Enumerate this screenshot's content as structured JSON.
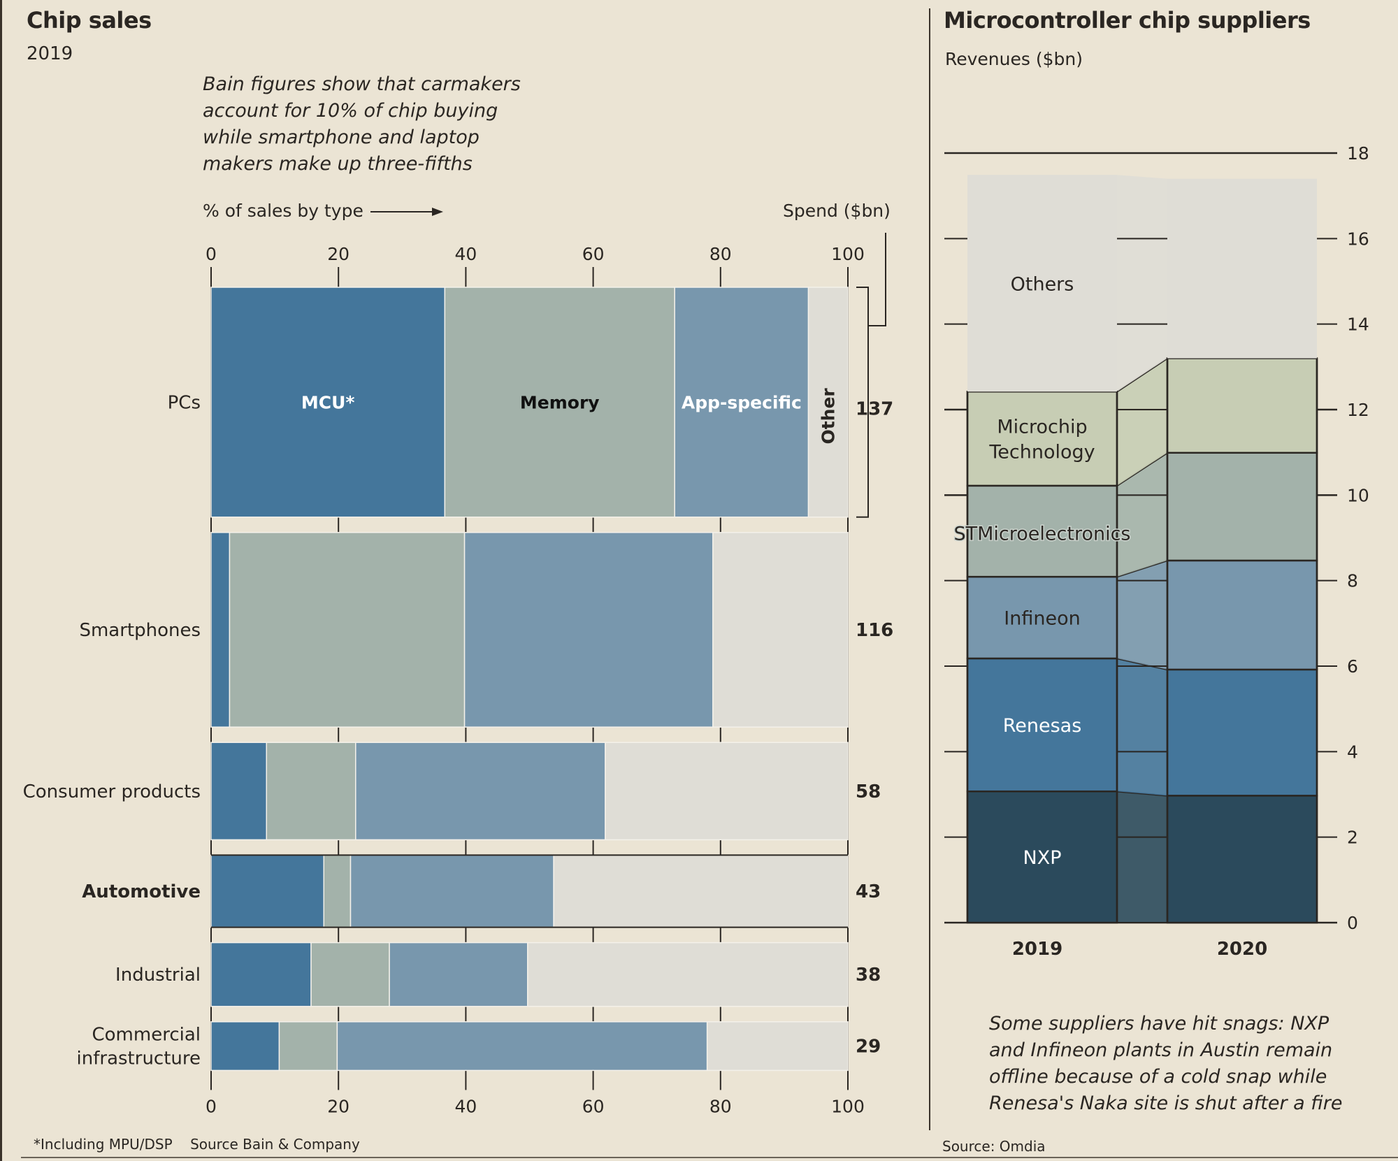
{
  "left": {
    "title": "Chip sales",
    "subtitle": "2019",
    "annotation_lines": [
      "Bain figures show that carmakers",
      "account for 10% of chip buying",
      "while smartphone and laptop",
      "makers make up three-fifths"
    ],
    "x_axis_caption": "% of sales by type",
    "spend_caption": "Spend ($bn)",
    "footnote": "*Including MPU/DSP",
    "source": "Source Bain & Company"
  },
  "right": {
    "title": "Microcontroller chip suppliers",
    "subtitle": "Revenues ($bn)",
    "annotation_lines": [
      "Some suppliers have hit snags: NXP",
      "and Infineon plants in Austin remain",
      "offline because of a cold snap while",
      "Renesa's Naka site is shut after a fire"
    ],
    "source": "Source: Omdia"
  },
  "colors": {
    "background": "#ebe4d4",
    "mcu": "#44769b",
    "memory": "#a3b2aa",
    "app_specific": "#7897ad",
    "other": "#dfddd6",
    "nxp": "#2b4a5c",
    "renesas": "#44769b",
    "infineon": "#7897ad",
    "stmicro": "#a3b2aa",
    "microchip": "#c7cdb4",
    "others": "#dfddd6",
    "ink": "#2a2622"
  },
  "chart_data": [
    {
      "type": "bar",
      "subtype": "marimekko-stacked-100",
      "title": "Chip sales",
      "subtitle": "2019",
      "xlabel": "% of sales by type",
      "xlim": [
        0,
        100
      ],
      "xticks": [
        0,
        20,
        40,
        60,
        80,
        100
      ],
      "grid": false,
      "bar_thickness_encodes": "Spend ($bn)",
      "categories": [
        "PCs",
        "Smartphones",
        "Consumer products",
        "Automotive",
        "Industrial",
        "Commercial infrastructure"
      ],
      "category_label_lines": [
        [
          "PCs"
        ],
        [
          "Smartphones"
        ],
        [
          "Consumer products"
        ],
        [
          "Automotive"
        ],
        [
          "Industrial"
        ],
        [
          "Commercial",
          "infrastructure"
        ]
      ],
      "highlight_category": "Automotive",
      "spend_bn": [
        137,
        116,
        58,
        43,
        38,
        29
      ],
      "series": [
        {
          "name": "MCU*",
          "color_key": "mcu",
          "label_color": "#ffffff",
          "values": [
            36.7,
            2.9,
            8.7,
            17.7,
            15.7,
            10.7
          ]
        },
        {
          "name": "Memory",
          "color_key": "memory",
          "label_color": "#111111",
          "values": [
            36.1,
            36.9,
            14.0,
            4.2,
            12.3,
            9.1
          ]
        },
        {
          "name": "App-specific",
          "color_key": "app_specific",
          "label_color": "#ffffff",
          "values": [
            21.0,
            39.0,
            39.2,
            31.9,
            21.7,
            58.1
          ]
        },
        {
          "name": "Other",
          "color_key": "other",
          "label_color": "#2a2622",
          "values": [
            6.2,
            21.2,
            38.1,
            46.2,
            50.3,
            22.1
          ]
        }
      ]
    },
    {
      "type": "bar",
      "subtype": "stacked",
      "title": "Microcontroller chip suppliers",
      "ylabel": "Revenues ($bn)",
      "ylim": [
        0,
        18
      ],
      "yticks": [
        0,
        2,
        4,
        6,
        8,
        10,
        12,
        14,
        16,
        18
      ],
      "grid": true,
      "categories": [
        "2019",
        "2020"
      ],
      "series": [
        {
          "name": "NXP",
          "color_key": "nxp",
          "label_color": "#ffffff",
          "label_lines": [
            "NXP"
          ],
          "values": [
            3.07,
            2.97
          ]
        },
        {
          "name": "Renesas",
          "color_key": "renesas",
          "label_color": "#ffffff",
          "label_lines": [
            "Renesas"
          ],
          "values": [
            3.11,
            2.95
          ]
        },
        {
          "name": "Infineon",
          "color_key": "infineon",
          "label_color": "#2a2622",
          "label_lines": [
            "Infineon"
          ],
          "values": [
            1.91,
            2.55
          ]
        },
        {
          "name": "STMicroelectronics",
          "color_key": "stmicro",
          "label_color": "#2a2622",
          "label_lines": [
            "STMicroelectronics"
          ],
          "values": [
            2.13,
            2.52
          ]
        },
        {
          "name": "Microchip Technology",
          "color_key": "microchip",
          "label_color": "#2a2622",
          "label_lines": [
            "Microchip",
            "Technology"
          ],
          "values": [
            2.2,
            2.21
          ]
        },
        {
          "name": "Others",
          "color_key": "others",
          "label_color": "#2a2622",
          "label_lines": [
            "Others"
          ],
          "values": [
            5.07,
            4.2
          ]
        }
      ]
    }
  ]
}
